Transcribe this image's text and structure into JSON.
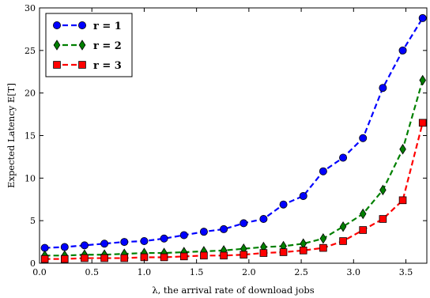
{
  "chart_data": {
    "type": "line",
    "xlabel": "λ, the arrival rate of download jobs",
    "ylabel": "Expected Latency E[T]",
    "xlim": [
      0.0,
      3.7
    ],
    "ylim": [
      0,
      30
    ],
    "xticks": [
      "0.0",
      "0.5",
      "1.0",
      "1.5",
      "2.0",
      "2.5",
      "3.0",
      "3.5"
    ],
    "yticks": [
      "0",
      "5",
      "10",
      "15",
      "20",
      "25",
      "30"
    ],
    "legend_position": "top-left",
    "grid": false,
    "series": [
      {
        "name": "r = 1",
        "color": "#0000ff",
        "marker": "circle",
        "x": [
          0.05,
          0.24,
          0.43,
          0.62,
          0.81,
          1.0,
          1.19,
          1.38,
          1.57,
          1.76,
          1.95,
          2.14,
          2.33,
          2.52,
          2.71,
          2.9,
          3.09,
          3.28,
          3.47,
          3.66
        ],
        "y": [
          1.8,
          1.9,
          2.1,
          2.3,
          2.5,
          2.6,
          2.9,
          3.3,
          3.7,
          4.0,
          4.7,
          5.2,
          6.9,
          7.9,
          10.8,
          12.4,
          14.7,
          20.6,
          25.0,
          28.8
        ]
      },
      {
        "name": "r = 2",
        "color": "#008000",
        "marker": "diamond",
        "x": [
          0.05,
          0.24,
          0.43,
          0.62,
          0.81,
          1.0,
          1.19,
          1.38,
          1.57,
          1.76,
          1.95,
          2.14,
          2.33,
          2.52,
          2.71,
          2.9,
          3.09,
          3.28,
          3.47,
          3.66
        ],
        "y": [
          0.9,
          0.9,
          1.0,
          1.0,
          1.1,
          1.2,
          1.2,
          1.3,
          1.4,
          1.5,
          1.7,
          1.9,
          2.0,
          2.3,
          2.9,
          4.3,
          5.8,
          8.6,
          13.4,
          21.5
        ]
      },
      {
        "name": "r = 3",
        "color": "#ff0000",
        "marker": "square",
        "x": [
          0.05,
          0.24,
          0.43,
          0.62,
          0.81,
          1.0,
          1.19,
          1.38,
          1.57,
          1.76,
          1.95,
          2.14,
          2.33,
          2.52,
          2.71,
          2.9,
          3.09,
          3.28,
          3.47,
          3.66
        ],
        "y": [
          0.5,
          0.5,
          0.6,
          0.6,
          0.6,
          0.7,
          0.7,
          0.8,
          0.9,
          0.9,
          1.0,
          1.2,
          1.3,
          1.5,
          1.8,
          2.6,
          3.9,
          5.2,
          7.4,
          16.5
        ]
      }
    ]
  }
}
